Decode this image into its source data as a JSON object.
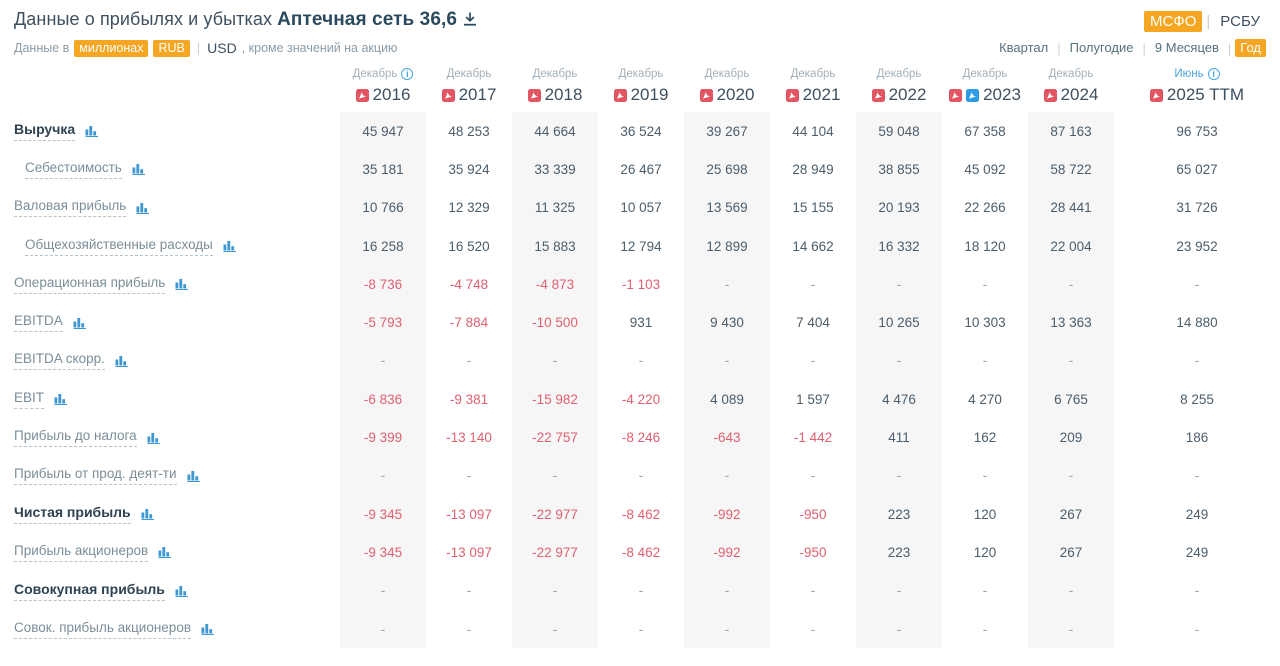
{
  "page": {
    "title_prefix": "Данные о прибылях и убытках",
    "company": "Аптечная сеть 36,6"
  },
  "divider": "|",
  "standards": [
    {
      "label": "МСФО",
      "active": true
    },
    {
      "label": "РСБУ",
      "active": false
    }
  ],
  "units": {
    "prefix": "Данные в",
    "unit": "миллионах",
    "currency": "RUB",
    "alt_currency": "USD",
    "suffix": ", кроме значений на акцию"
  },
  "periods": [
    {
      "label": "Квартал",
      "active": false
    },
    {
      "label": "Полугодие",
      "active": false
    },
    {
      "label": "9 Месяцев",
      "active": false
    },
    {
      "label": "Год",
      "active": true
    }
  ],
  "colors": {
    "accent_orange": "#f5a623",
    "negative_red": "#e0606f",
    "icon_blue": "#3e97d3",
    "info_blue": "#45a7e6",
    "pdf_red": "#e25563",
    "pdf_blue": "#2e9be6",
    "stripe_gray": "#f6f6f7"
  },
  "table": {
    "columns": [
      {
        "month": "Декабрь",
        "year": "2016",
        "info": true,
        "month_blue": false,
        "pdfs": [
          "red"
        ]
      },
      {
        "month": "Декабрь",
        "year": "2017",
        "info": false,
        "month_blue": false,
        "pdfs": [
          "red"
        ]
      },
      {
        "month": "Декабрь",
        "year": "2018",
        "info": false,
        "month_blue": false,
        "pdfs": [
          "red"
        ]
      },
      {
        "month": "Декабрь",
        "year": "2019",
        "info": false,
        "month_blue": false,
        "pdfs": [
          "red"
        ]
      },
      {
        "month": "Декабрь",
        "year": "2020",
        "info": false,
        "month_blue": false,
        "pdfs": [
          "red"
        ]
      },
      {
        "month": "Декабрь",
        "year": "2021",
        "info": false,
        "month_blue": false,
        "pdfs": [
          "red"
        ]
      },
      {
        "month": "Декабрь",
        "year": "2022",
        "info": false,
        "month_blue": false,
        "pdfs": [
          "red"
        ]
      },
      {
        "month": "Декабрь",
        "year": "2023",
        "info": false,
        "month_blue": false,
        "pdfs": [
          "red",
          "blue"
        ]
      },
      {
        "month": "Декабрь",
        "year": "2024",
        "info": false,
        "month_blue": false,
        "pdfs": [
          "red"
        ]
      },
      {
        "month": "Июнь",
        "year": "2025 TTM",
        "info": true,
        "month_blue": true,
        "pdfs": [
          "red"
        ]
      }
    ],
    "rows": [
      {
        "label": "Выручка",
        "bold": true,
        "indent": false,
        "values": [
          "45 947",
          "48 253",
          "44 664",
          "36 524",
          "39 267",
          "44 104",
          "59 048",
          "67 358",
          "87 163",
          "96 753"
        ]
      },
      {
        "label": "Себестоимость",
        "bold": false,
        "indent": true,
        "values": [
          "35 181",
          "35 924",
          "33 339",
          "26 467",
          "25 698",
          "28 949",
          "38 855",
          "45 092",
          "58 722",
          "65 027"
        ]
      },
      {
        "label": "Валовая прибыль",
        "bold": false,
        "indent": false,
        "values": [
          "10 766",
          "12 329",
          "11 325",
          "10 057",
          "13 569",
          "15 155",
          "20 193",
          "22 266",
          "28 441",
          "31 726"
        ]
      },
      {
        "label": "Общехозяйственные расходы",
        "bold": false,
        "indent": true,
        "values": [
          "16 258",
          "16 520",
          "15 883",
          "12 794",
          "12 899",
          "14 662",
          "16 332",
          "18 120",
          "22 004",
          "23 952"
        ]
      },
      {
        "label": "Операционная прибыль",
        "bold": false,
        "indent": false,
        "values": [
          "-8 736",
          "-4 748",
          "-4 873",
          "-1 103",
          "-",
          "-",
          "-",
          "-",
          "-",
          "-"
        ]
      },
      {
        "label": "EBITDA",
        "bold": false,
        "indent": false,
        "values": [
          "-5 793",
          "-7 884",
          "-10 500",
          "931",
          "9 430",
          "7 404",
          "10 265",
          "10 303",
          "13 363",
          "14 880"
        ]
      },
      {
        "label": "EBITDA скорр.",
        "bold": false,
        "indent": false,
        "values": [
          "-",
          "-",
          "-",
          "-",
          "-",
          "-",
          "-",
          "-",
          "-",
          "-"
        ]
      },
      {
        "label": "EBIT",
        "bold": false,
        "indent": false,
        "values": [
          "-6 836",
          "-9 381",
          "-15 982",
          "-4 220",
          "4 089",
          "1 597",
          "4 476",
          "4 270",
          "6 765",
          "8 255"
        ]
      },
      {
        "label": "Прибыль до налога",
        "bold": false,
        "indent": false,
        "values": [
          "-9 399",
          "-13 140",
          "-22 757",
          "-8 246",
          "-643",
          "-1 442",
          "411",
          "162",
          "209",
          "186"
        ]
      },
      {
        "label": "Прибыль от прод. деят-ти",
        "bold": false,
        "indent": false,
        "values": [
          "-",
          "-",
          "-",
          "-",
          "-",
          "-",
          "-",
          "-",
          "-",
          "-"
        ]
      },
      {
        "label": "Чистая прибыль",
        "bold": true,
        "indent": false,
        "values": [
          "-9 345",
          "-13 097",
          "-22 977",
          "-8 462",
          "-992",
          "-950",
          "223",
          "120",
          "267",
          "249"
        ]
      },
      {
        "label": "Прибыль акционеров",
        "bold": false,
        "indent": false,
        "values": [
          "-9 345",
          "-13 097",
          "-22 977",
          "-8 462",
          "-992",
          "-950",
          "223",
          "120",
          "267",
          "249"
        ]
      },
      {
        "label": "Совокупная прибыль",
        "bold": true,
        "indent": false,
        "values": [
          "-",
          "-",
          "-",
          "-",
          "-",
          "-",
          "-",
          "-",
          "-",
          "-"
        ]
      },
      {
        "label": "Совок. прибыль акционеров",
        "bold": false,
        "indent": false,
        "values": [
          "-",
          "-",
          "-",
          "-",
          "-",
          "-",
          "-",
          "-",
          "-",
          "-"
        ]
      }
    ]
  }
}
